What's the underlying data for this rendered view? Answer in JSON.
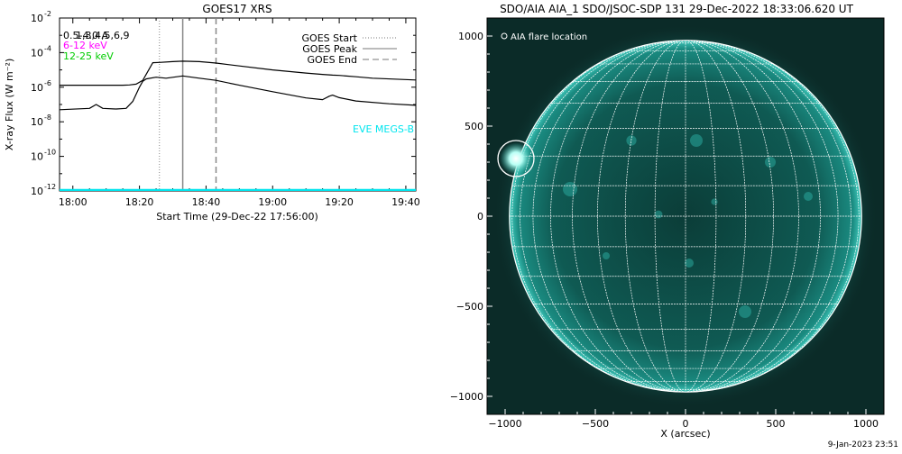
{
  "chart_data": [
    {
      "type": "line",
      "title": "GOES17 XRS",
      "xlabel": "Start Time (29-Dec-22 17:56:00)",
      "ylabel": "X-ray Flux (W m⁻²)",
      "y_scale": "log",
      "ylim": [
        "1e-12",
        "1e-2"
      ],
      "xlim": [
        "17:56",
        "19:43"
      ],
      "x_ticks": [
        "18:00",
        "18:20",
        "18:40",
        "19:00",
        "19:20",
        "19:40"
      ],
      "y_ticks": [
        {
          "base": "10",
          "exp": "-2"
        },
        {
          "base": "10",
          "exp": "-4"
        },
        {
          "base": "10",
          "exp": "-6"
        },
        {
          "base": "10",
          "exp": "-8"
        },
        {
          "base": "10",
          "exp": "-10"
        },
        {
          "base": "10",
          "exp": "-12"
        }
      ],
      "labels_top_left": [
        {
          "text": "0.5-4.0 A",
          "color": "#000000"
        },
        {
          "text": "1,3,4,5,6,9",
          "color": "#000000"
        },
        {
          "text": "6-12 keV",
          "color": "#ff00ff"
        },
        {
          "text": "12-25 keV",
          "color": "#00cc00"
        }
      ],
      "legend": {
        "position": "top-right",
        "entries": [
          {
            "label": "GOES Start",
            "style": "dotted"
          },
          {
            "label": "GOES Peak",
            "style": "solid"
          },
          {
            "label": "GOES End",
            "style": "dashed"
          }
        ]
      },
      "eve_label": "EVE MEGS-B",
      "eve_color": "#00e5ee",
      "vertical_markers": {
        "start": "18:26",
        "peak": "18:33",
        "end": "18:43"
      },
      "series": [
        {
          "name": "long-channel",
          "color": "#000000",
          "x": [
            "17:56",
            "18:10",
            "18:15",
            "18:17",
            "18:19",
            "18:21",
            "18:24",
            "18:26",
            "18:30",
            "18:33",
            "18:38",
            "18:43",
            "18:50",
            "19:00",
            "19:10",
            "19:15",
            "19:18",
            "19:20",
            "19:25",
            "19:30",
            "19:43"
          ],
          "y": [
            "1.3e-6",
            "1.3e-6",
            "1.3e-6",
            "1.35e-6",
            "1.5e-6",
            "2.5e-6",
            "2.6e-5",
            "2.7e-5",
            "3.0e-5",
            "3.2e-5",
            "3.0e-5",
            "2.5e-5",
            "1.7e-5",
            "1.0e-5",
            "6.6e-6",
            "5.5e-6",
            "5.0e-6",
            "4.8e-6",
            "4.0e-6",
            "3.3e-6",
            "2.6e-6"
          ]
        },
        {
          "name": "short-channel",
          "color": "#000000",
          "x": [
            "17:56",
            "18:05",
            "18:07",
            "18:09",
            "18:13",
            "18:16",
            "18:18",
            "18:20",
            "18:21",
            "18:22",
            "18:25",
            "18:28",
            "18:33",
            "18:38",
            "18:43",
            "18:50",
            "19:00",
            "19:10",
            "19:15",
            "19:17",
            "19:18",
            "19:20",
            "19:25",
            "19:35",
            "19:43"
          ],
          "y": [
            "5e-8",
            "6e-8",
            "1e-7",
            "6e-8",
            "5.5e-8",
            "6e-8",
            "1.5e-7",
            "1.0e-6",
            "2.2e-6",
            "3.0e-6",
            "3.8e-6",
            "3.3e-6",
            "4.5e-6",
            "3.3e-6",
            "2.5e-6",
            "1.3e-6",
            "5.5e-7",
            "2.4e-7",
            "1.9e-7",
            "3.0e-7",
            "3.5e-7",
            "2.5e-7",
            "1.6e-7",
            "1.1e-7",
            "9e-8"
          ]
        },
        {
          "name": "eve-baseline",
          "color": "#00e5ee",
          "x": [
            "17:56",
            "19:43"
          ],
          "y": [
            "1e-12",
            "1e-12"
          ]
        }
      ]
    },
    {
      "type": "image",
      "title": "SDO/AIA AIA_1 SDO/JSOC-SDP 131 29-Dec-2022 18:33:06.620 UT",
      "xlabel": "X (arcsec)",
      "xlim": [
        -1100,
        1100
      ],
      "ylim": [
        -1100,
        1100
      ],
      "x_ticks": [
        "−1000",
        "−500",
        "0",
        "500",
        "1000"
      ],
      "y_ticks": [
        "1000",
        "500",
        "0",
        "−500",
        "−1000"
      ],
      "legend_label": "AIA flare location",
      "flare_location": {
        "x": -940,
        "y": 320
      },
      "solar_radius_arcsec": 976,
      "background_color": "#0b2b28",
      "disk_color": "#0f6a63",
      "grid_color": "#ffffff"
    }
  ],
  "footer": {
    "date": "9-Jan-2023 23:51"
  }
}
